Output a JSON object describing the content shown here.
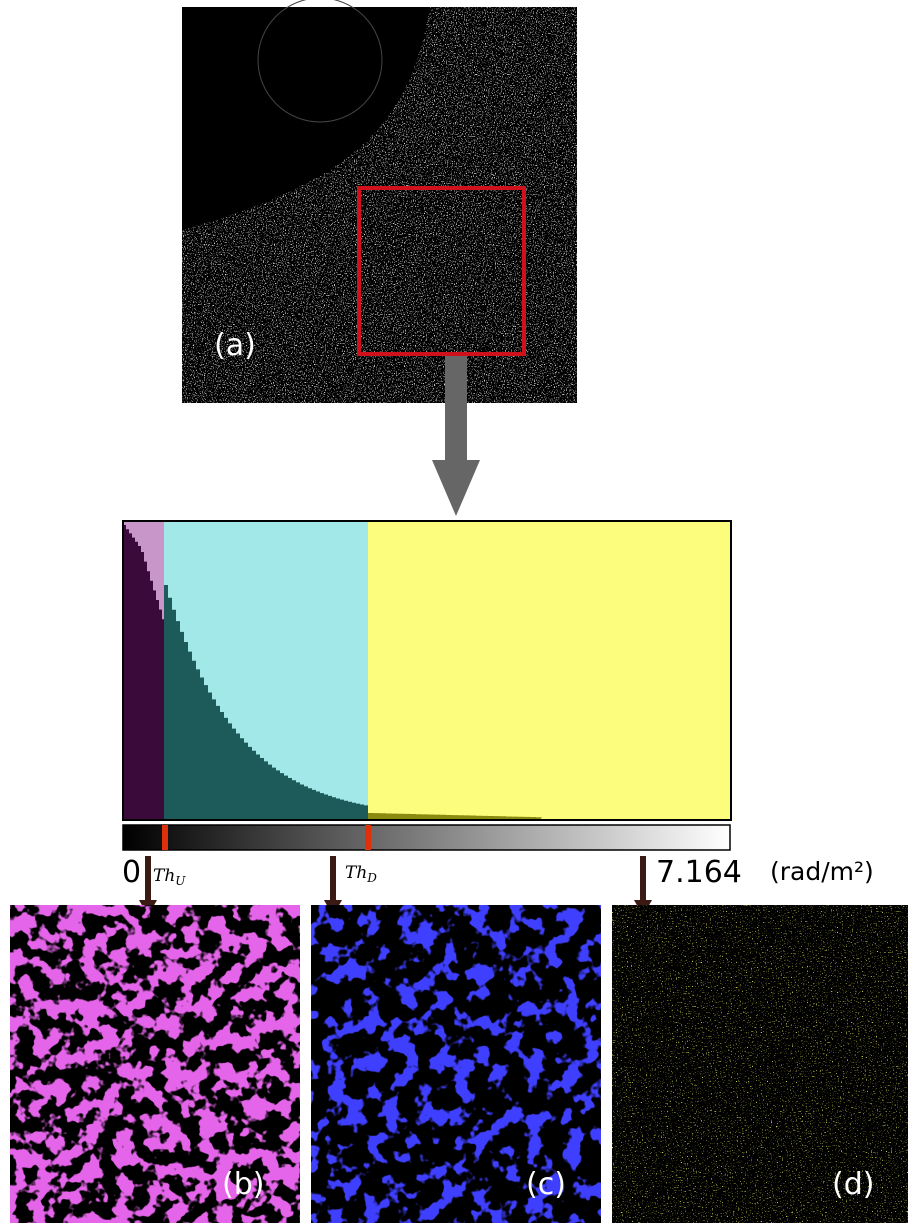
{
  "panels": {
    "a": "(a)",
    "b": "(b)",
    "c": "(c)",
    "d": "(d)"
  },
  "scale": {
    "min": "0",
    "max": "7.164",
    "unit": "(rad/m²)",
    "thresholds": [
      {
        "base": "Th",
        "sub": "U"
      },
      {
        "base": "Th",
        "sub": "D"
      }
    ]
  }
}
